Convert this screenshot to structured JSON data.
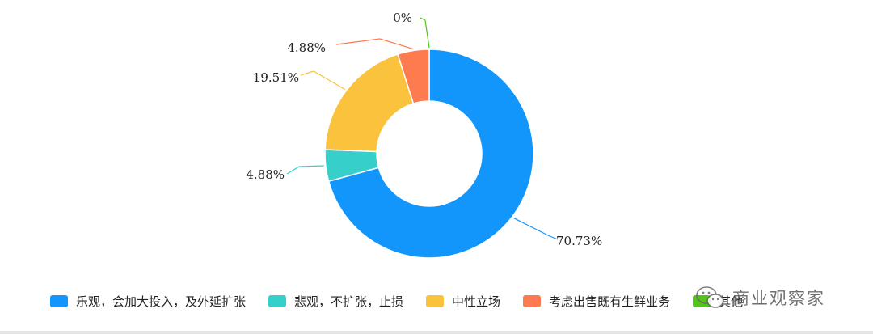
{
  "chart_data": {
    "type": "pie",
    "donut": true,
    "legend_position": "bottom",
    "slices": [
      {
        "label": "乐观，会加大投入，及外延扩张",
        "value": 70.73,
        "display": "70.73%",
        "color": "#1296fb"
      },
      {
        "label": "悲观，不扩张，止损",
        "value": 4.88,
        "display": "4.88%",
        "color": "#36cfc9"
      },
      {
        "label": "中性立场",
        "value": 19.51,
        "display": "19.51%",
        "color": "#fbc23e"
      },
      {
        "label": "考虑出售既有生鲜业务",
        "value": 4.88,
        "display": "4.88%",
        "color": "#fd7b4e"
      },
      {
        "label": "其他",
        "value": 0,
        "display": "0%",
        "color": "#52c41a"
      }
    ]
  },
  "legend": {
    "items": [
      {
        "label": "乐观，会加大投入，及外延扩张",
        "color": "#1296fb"
      },
      {
        "label": "悲观，不扩张，止损",
        "color": "#36cfc9"
      },
      {
        "label": "中性立场",
        "color": "#fbc23e"
      },
      {
        "label": "考虑出售既有生鲜业务",
        "color": "#fd7b4e"
      },
      {
        "label": "其他",
        "color": "#52c41a"
      }
    ]
  },
  "watermark": {
    "text": "商业观察家",
    "icon": "wechat-icon"
  }
}
